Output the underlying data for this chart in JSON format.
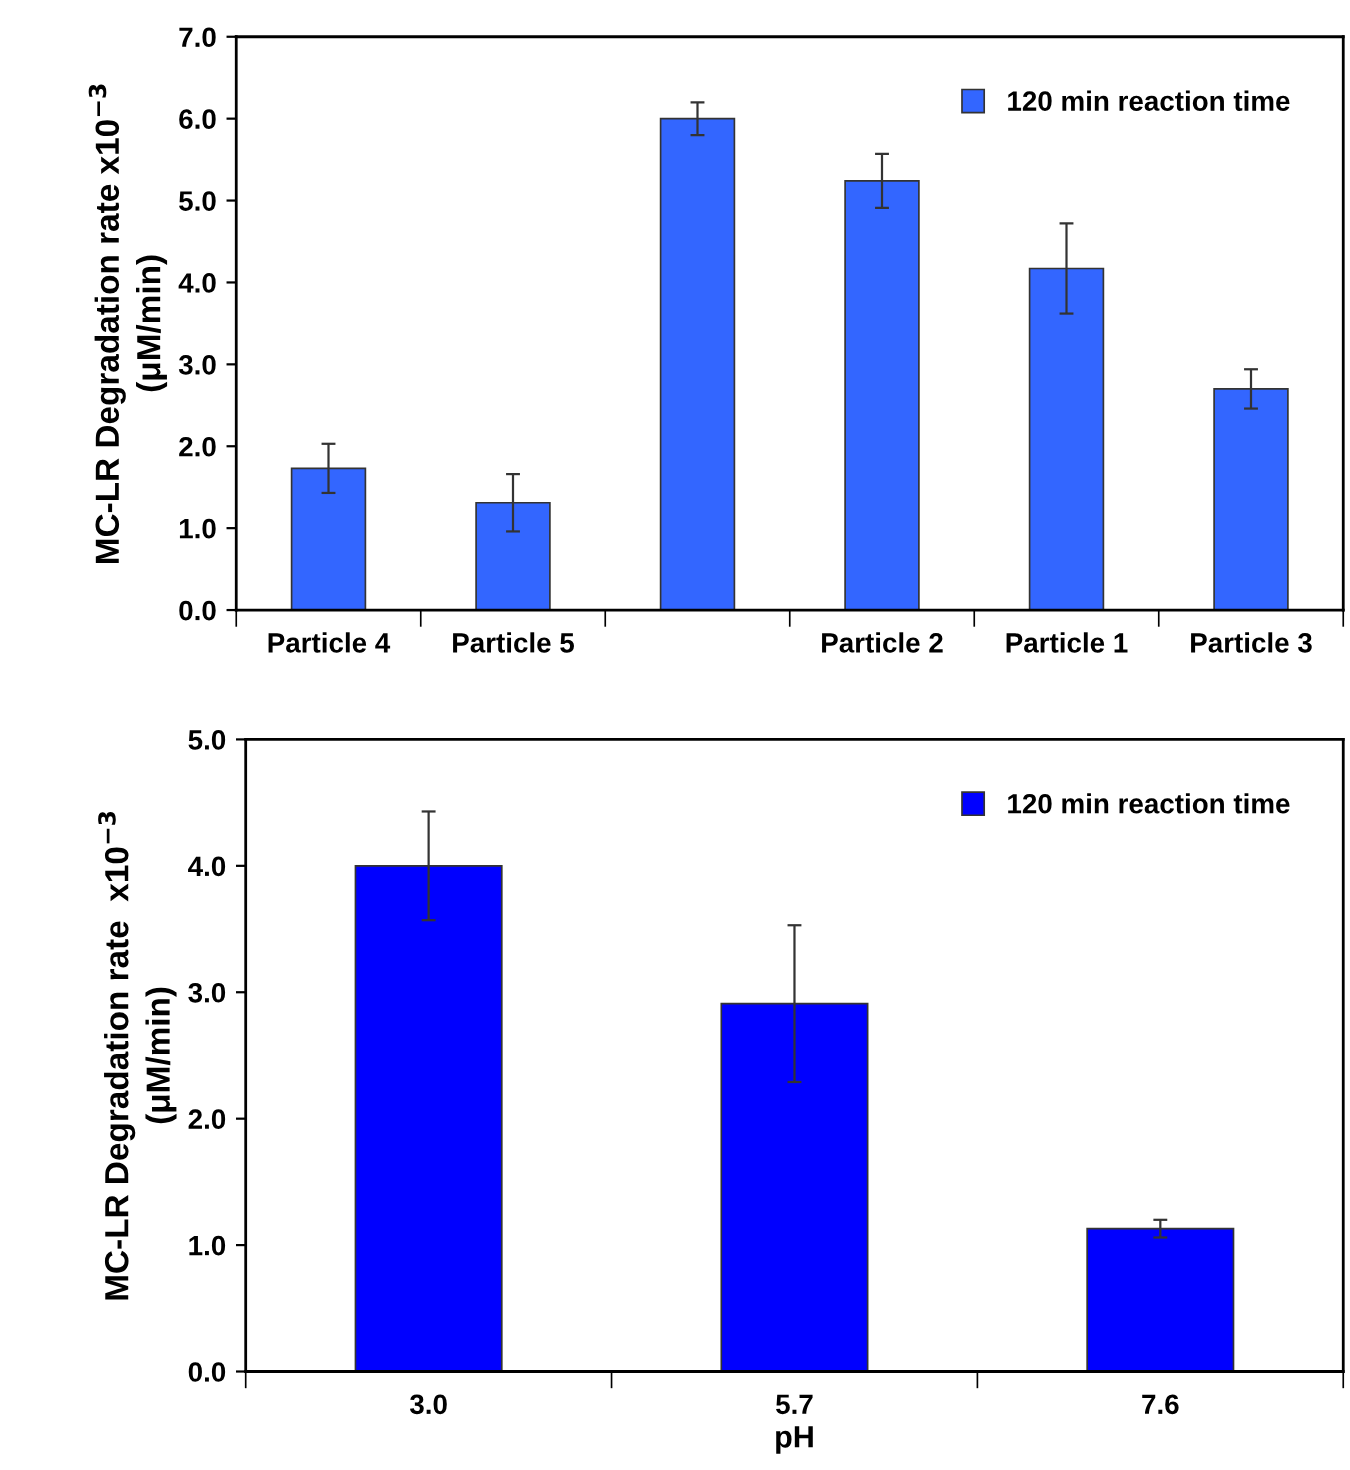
{
  "chart_data": [
    {
      "type": "bar",
      "ylabel": "MC-LR Degradation rate x10$^{−3}$\n(μM/min)",
      "categories": [
        "Particle 4",
        "Particle 5",
        null,
        "Particle 2",
        "Particle 1",
        "Particle 3"
      ],
      "series": [
        {
          "name": "120 min reaction time",
          "color": "#3366ff",
          "values": [
            1.73,
            1.31,
            6.0,
            5.24,
            4.17,
            2.7
          ],
          "errors": [
            0.3,
            0.35,
            0.2,
            0.33,
            0.55,
            0.24
          ]
        }
      ],
      "ylim": [
        0,
        7
      ],
      "yticks": [
        {
          "value": 0,
          "label": "0.0"
        },
        {
          "value": 1,
          "label": "1.0"
        },
        {
          "value": 2,
          "label": "2.0"
        },
        {
          "value": 3,
          "label": "3.0"
        },
        {
          "value": 4,
          "label": "4.0"
        },
        {
          "value": 5,
          "label": "5.0"
        },
        {
          "value": 6,
          "label": "6.0"
        },
        {
          "value": 7,
          "label": "7.0"
        }
      ],
      "legend": "top right",
      "grid": false
    },
    {
      "type": "bar",
      "ylabel": "MC-LR Degradation rate  x10$^{−3}$\n(μM/min)",
      "xlabel": "pH",
      "categories": [
        "3.0",
        "5.7",
        "7.6"
      ],
      "series": [
        {
          "name": "120 min reaction time",
          "color": "#0000ff",
          "values": [
            4.0,
            2.91,
            1.13
          ],
          "errors": [
            0.43,
            0.62,
            0.07
          ]
        }
      ],
      "ylim": [
        0,
        5
      ],
      "yticks": [
        {
          "value": 0,
          "label": "0.0"
        },
        {
          "value": 1,
          "label": "1.0"
        },
        {
          "value": 2,
          "label": "2.0"
        },
        {
          "value": 3,
          "label": "3.0"
        },
        {
          "value": 4,
          "label": "4.0"
        },
        {
          "value": 5,
          "label": "5.0"
        }
      ],
      "legend": "top right",
      "grid": false
    }
  ]
}
